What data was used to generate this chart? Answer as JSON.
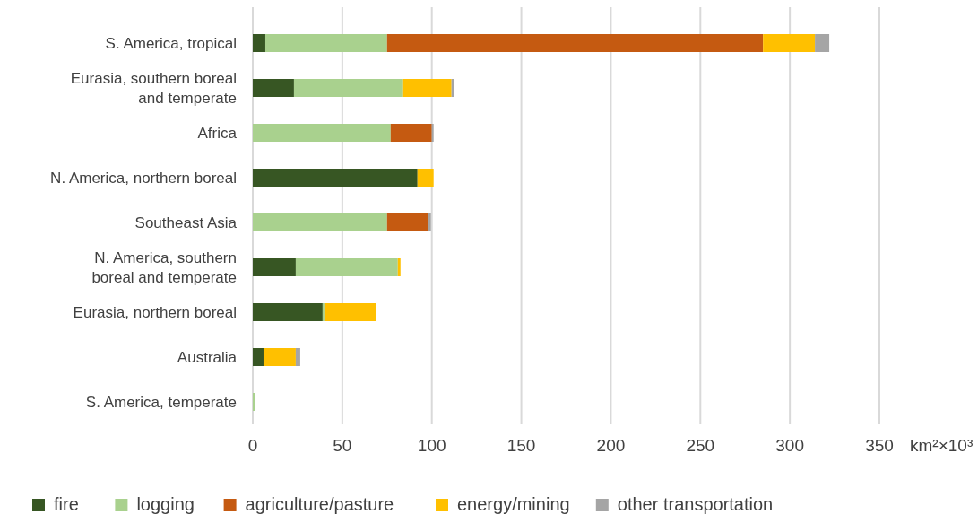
{
  "chart_data": {
    "type": "bar",
    "orientation": "horizontal",
    "stacked": true,
    "xlabel": "km²×10³",
    "categories": [
      "S. America, tropical",
      "Eurasia, southern boreal and temperate",
      "Africa",
      "N. America, northern boreal",
      "Southeast Asia",
      "N. America, southern boreal and temperate",
      "Eurasia, northern boreal",
      "Australia",
      "S. America, temperate"
    ],
    "series": [
      {
        "name": "fire",
        "color": "#375623",
        "values": [
          7,
          23,
          0,
          92,
          0,
          24,
          39,
          6,
          0
        ]
      },
      {
        "name": "logging",
        "color": "#a9d18e",
        "values": [
          68,
          61,
          77,
          0,
          75,
          57,
          1,
          0,
          1.5
        ]
      },
      {
        "name": "agriculture/pasture",
        "color": "#c55a11",
        "values": [
          210,
          0,
          23,
          0,
          23,
          0,
          0,
          0,
          0
        ]
      },
      {
        "name": "energy/mining",
        "color": "#ffc000",
        "values": [
          29,
          27,
          0,
          9,
          0,
          1.5,
          29,
          18,
          0
        ]
      },
      {
        "name": "other transportation",
        "color": "#a5a5a5",
        "values": [
          8,
          1.5,
          1,
          0,
          1.5,
          0,
          0,
          2.5,
          0
        ]
      }
    ],
    "xlim": [
      0,
      350
    ],
    "xticks": [
      0,
      50,
      100,
      150,
      200,
      250,
      300,
      350
    ],
    "grid": "x",
    "legend": "bottom"
  }
}
